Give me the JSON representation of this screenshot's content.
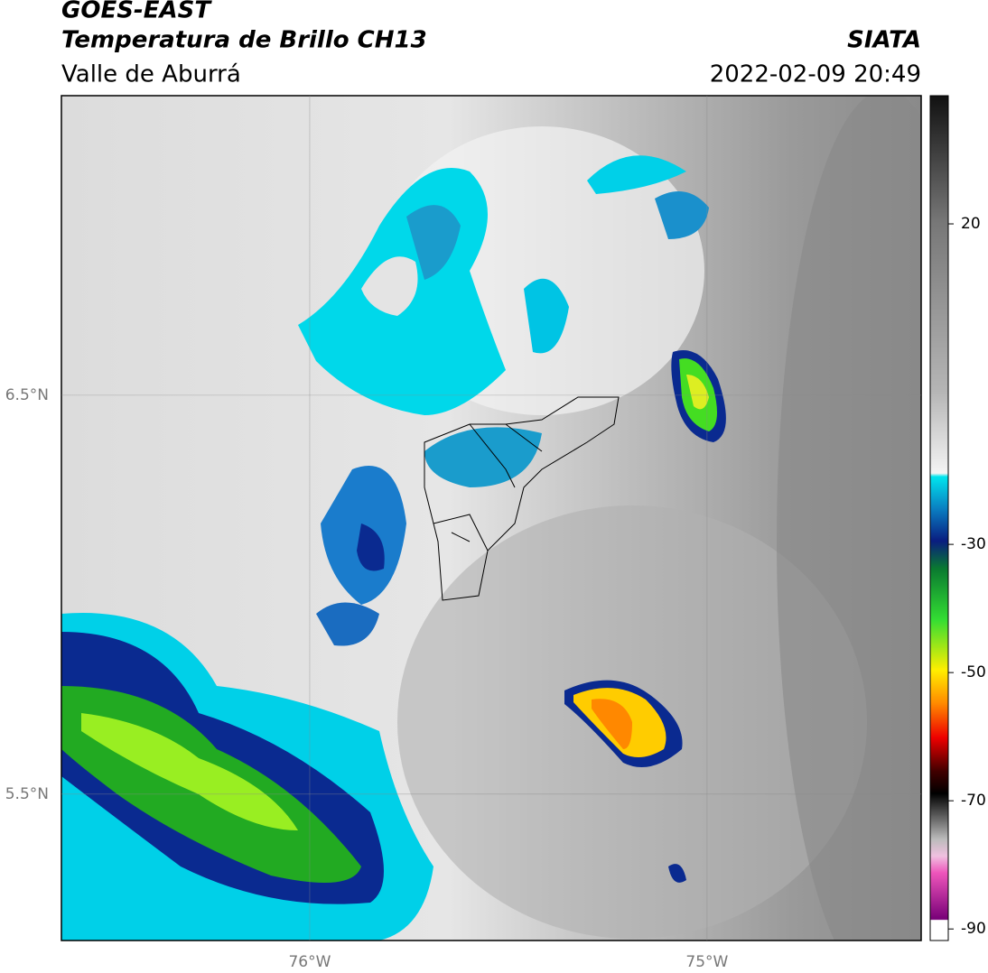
{
  "header": {
    "satellite": "GOES-EAST",
    "product": "Temperatura de Brillo CH13",
    "region": "Valle de Aburrá",
    "source": "SIATA",
    "datetime": "2022-02-09 20:49"
  },
  "map": {
    "xlim": [
      -76.625,
      -74.461
    ],
    "ylim": [
      5.133,
      7.251
    ],
    "xticks": [
      {
        "value": -76,
        "label": "76°W"
      },
      {
        "value": -75,
        "label": "75°W"
      }
    ],
    "yticks": [
      {
        "value": 6.5,
        "label": "6.5°N"
      },
      {
        "value": 5.5,
        "label": "5.5°N"
      }
    ]
  },
  "colorbar": {
    "lim": [
      -91.8,
      40
    ],
    "ticks": [
      20,
      -30,
      -50,
      -70,
      -90
    ]
  }
}
